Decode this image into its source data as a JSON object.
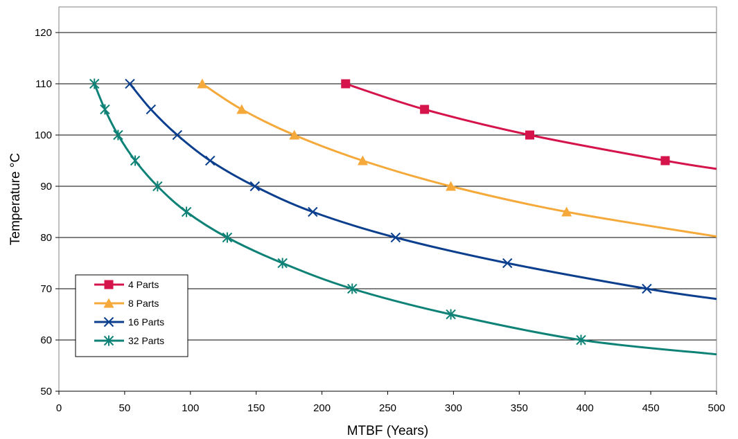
{
  "chart_data": {
    "type": "line",
    "title": "",
    "xlabel": "MTBF (Years)",
    "ylabel": "Temperature °C",
    "xlim": [
      0,
      500
    ],
    "ylim": [
      50,
      125
    ],
    "xticks": [
      0,
      50,
      100,
      150,
      200,
      250,
      300,
      350,
      400,
      450,
      500
    ],
    "yticks": [
      50,
      60,
      70,
      80,
      90,
      100,
      110,
      120
    ],
    "grid": "horizontal",
    "legend_position": "bottom-left",
    "series": [
      {
        "name": "4 Parts",
        "color": "#d4144a",
        "marker": "square",
        "points": [
          [
            218,
            110
          ],
          [
            278,
            105
          ],
          [
            358,
            100
          ],
          [
            461,
            95
          ],
          [
            500,
            93.4
          ]
        ],
        "markers": [
          [
            218,
            110
          ],
          [
            278,
            105
          ],
          [
            358,
            100
          ],
          [
            461,
            95
          ]
        ]
      },
      {
        "name": "8 Parts",
        "color": "#f5a93a",
        "marker": "triangle",
        "points": [
          [
            109,
            110
          ],
          [
            139,
            105
          ],
          [
            179,
            100
          ],
          [
            231,
            95
          ],
          [
            298,
            90
          ],
          [
            386,
            85
          ],
          [
            500,
            80.2
          ]
        ],
        "markers": [
          [
            109,
            110
          ],
          [
            139,
            105
          ],
          [
            179,
            100
          ],
          [
            231,
            95
          ],
          [
            298,
            90
          ],
          [
            386,
            85
          ]
        ]
      },
      {
        "name": "16 Parts",
        "color": "#0b3f8e",
        "marker": "x",
        "points": [
          [
            54,
            110
          ],
          [
            70,
            105
          ],
          [
            90,
            100
          ],
          [
            115,
            95
          ],
          [
            149,
            90
          ],
          [
            193,
            85
          ],
          [
            256,
            80
          ],
          [
            341,
            75
          ],
          [
            447,
            70
          ],
          [
            500,
            68
          ]
        ],
        "markers": [
          [
            54,
            110
          ],
          [
            70,
            105
          ],
          [
            90,
            100
          ],
          [
            115,
            95
          ],
          [
            149,
            90
          ],
          [
            193,
            85
          ],
          [
            256,
            80
          ],
          [
            341,
            75
          ],
          [
            447,
            70
          ]
        ]
      },
      {
        "name": "32 Parts",
        "color": "#0e8276",
        "marker": "asterisk",
        "points": [
          [
            27,
            110
          ],
          [
            35,
            105
          ],
          [
            45,
            100
          ],
          [
            58,
            95
          ],
          [
            75,
            90
          ],
          [
            97,
            85
          ],
          [
            128,
            80
          ],
          [
            170,
            75
          ],
          [
            223,
            70
          ],
          [
            298,
            65
          ],
          [
            397,
            60
          ],
          [
            500,
            57.2
          ]
        ],
        "markers": [
          [
            27,
            110
          ],
          [
            35,
            105
          ],
          [
            45,
            100
          ],
          [
            58,
            95
          ],
          [
            75,
            90
          ],
          [
            97,
            85
          ],
          [
            128,
            80
          ],
          [
            170,
            75
          ],
          [
            223,
            70
          ],
          [
            298,
            65
          ],
          [
            397,
            60
          ]
        ]
      }
    ]
  }
}
